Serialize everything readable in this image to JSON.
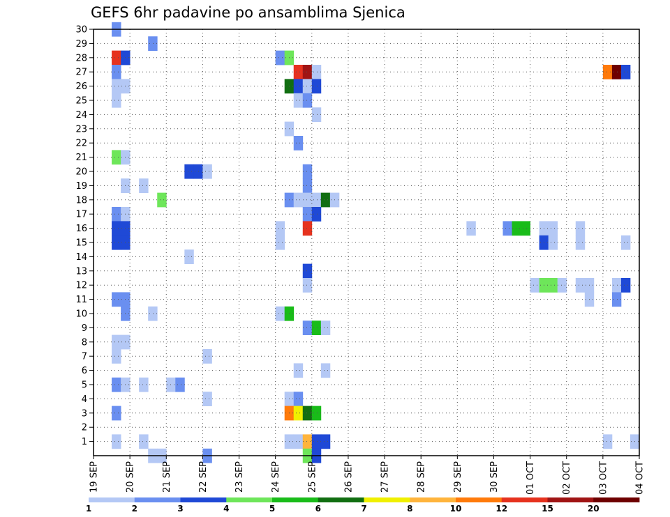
{
  "chart_data": {
    "type": "heatmap",
    "title": "GEFS 6hr padavine po ansamblima Sjenica",
    "xlabel": "",
    "ylabel": "",
    "x_tick_labels": [
      "19 SEP",
      "20 SEP",
      "21 SEP",
      "22 SEP",
      "23 SEP",
      "24 SEP",
      "25 SEP",
      "26 SEP",
      "27 SEP",
      "28 SEP",
      "29 SEP",
      "30 SEP",
      "01 OCT",
      "02 OCT",
      "03 OCT",
      "04 OCT"
    ],
    "x_unit": "6-hour steps from 19 SEP 00Z",
    "xlim": [
      0,
      60
    ],
    "y_tick_labels": [
      "1",
      "2",
      "3",
      "4",
      "5",
      "6",
      "7",
      "8",
      "9",
      "10",
      "11",
      "12",
      "13",
      "14",
      "15",
      "16",
      "17",
      "18",
      "19",
      "20",
      "21",
      "22",
      "23",
      "24",
      "25",
      "26",
      "27",
      "28",
      "29",
      "30"
    ],
    "ylim": [
      0,
      30
    ],
    "grid": true,
    "legend": {
      "placement": "bottom",
      "levels": [
        "1",
        "2",
        "3",
        "4",
        "5",
        "6",
        "7",
        "8",
        "10",
        "12",
        "15",
        "20"
      ],
      "colors": [
        "#b4c8f5",
        "#6a8ff0",
        "#1f49d6",
        "#6ee65a",
        "#19bc19",
        "#116e11",
        "#f0f000",
        "#ffb43c",
        "#ff7a0a",
        "#e6321e",
        "#a01414",
        "#6e0000"
      ]
    },
    "cells": [
      [
        2,
        30,
        1
      ],
      [
        6,
        29,
        1
      ],
      [
        2,
        28,
        9
      ],
      [
        3,
        28,
        2
      ],
      [
        20,
        28,
        1
      ],
      [
        21,
        28,
        3
      ],
      [
        2,
        27,
        1
      ],
      [
        22,
        27,
        9
      ],
      [
        23,
        27,
        10
      ],
      [
        24,
        27,
        0
      ],
      [
        56,
        27,
        8
      ],
      [
        57,
        27,
        11
      ],
      [
        58,
        27,
        2
      ],
      [
        2,
        26,
        0
      ],
      [
        3,
        26,
        0
      ],
      [
        21,
        26,
        5
      ],
      [
        22,
        26,
        2
      ],
      [
        23,
        26,
        0
      ],
      [
        24,
        26,
        2
      ],
      [
        2,
        25,
        0
      ],
      [
        22,
        25,
        0
      ],
      [
        23,
        25,
        1
      ],
      [
        24,
        24,
        0
      ],
      [
        21,
        23,
        0
      ],
      [
        22,
        22,
        1
      ],
      [
        2,
        21,
        3
      ],
      [
        3,
        21,
        0
      ],
      [
        10,
        20,
        2
      ],
      [
        11,
        20,
        2
      ],
      [
        12,
        20,
        0
      ],
      [
        23,
        20,
        1
      ],
      [
        3,
        19,
        0
      ],
      [
        5,
        19,
        0
      ],
      [
        23,
        19,
        1
      ],
      [
        7,
        18,
        3
      ],
      [
        21,
        18,
        1
      ],
      [
        22,
        18,
        0
      ],
      [
        23,
        18,
        0
      ],
      [
        24,
        18,
        0
      ],
      [
        25,
        18,
        5
      ],
      [
        26,
        18,
        0
      ],
      [
        2,
        17,
        1
      ],
      [
        3,
        17,
        0
      ],
      [
        23,
        17,
        1
      ],
      [
        24,
        17,
        2
      ],
      [
        2,
        16,
        2
      ],
      [
        3,
        16,
        2
      ],
      [
        20,
        16,
        0
      ],
      [
        23,
        16,
        9
      ],
      [
        41,
        16,
        0
      ],
      [
        45,
        16,
        1
      ],
      [
        46,
        16,
        4
      ],
      [
        47,
        16,
        4
      ],
      [
        49,
        16,
        0
      ],
      [
        50,
        16,
        0
      ],
      [
        53,
        16,
        0
      ],
      [
        2,
        15,
        2
      ],
      [
        3,
        15,
        2
      ],
      [
        20,
        15,
        0
      ],
      [
        49,
        15,
        2
      ],
      [
        50,
        15,
        0
      ],
      [
        53,
        15,
        0
      ],
      [
        58,
        15,
        0
      ],
      [
        10,
        14,
        0
      ],
      [
        23,
        13,
        2
      ],
      [
        23,
        12,
        0
      ],
      [
        48,
        12,
        0
      ],
      [
        49,
        12,
        3
      ],
      [
        50,
        12,
        3
      ],
      [
        51,
        12,
        0
      ],
      [
        53,
        12,
        0
      ],
      [
        54,
        12,
        0
      ],
      [
        57,
        12,
        0
      ],
      [
        58,
        12,
        2
      ],
      [
        2,
        11,
        1
      ],
      [
        3,
        11,
        1
      ],
      [
        54,
        11,
        0
      ],
      [
        57,
        11,
        1
      ],
      [
        3,
        10,
        1
      ],
      [
        6,
        10,
        0
      ],
      [
        20,
        10,
        0
      ],
      [
        21,
        10,
        4
      ],
      [
        23,
        9,
        1
      ],
      [
        24,
        9,
        4
      ],
      [
        25,
        9,
        0
      ],
      [
        2,
        8,
        0
      ],
      [
        3,
        8,
        0
      ],
      [
        2,
        7,
        0
      ],
      [
        12,
        7,
        0
      ],
      [
        22,
        6,
        0
      ],
      [
        25,
        6,
        0
      ],
      [
        2,
        5,
        1
      ],
      [
        3,
        5,
        0
      ],
      [
        5,
        5,
        0
      ],
      [
        8,
        5,
        0
      ],
      [
        9,
        5,
        1
      ],
      [
        12,
        4,
        0
      ],
      [
        21,
        4,
        0
      ],
      [
        22,
        4,
        1
      ],
      [
        2,
        3,
        1
      ],
      [
        21,
        3,
        8
      ],
      [
        22,
        3,
        6
      ],
      [
        23,
        3,
        5
      ],
      [
        24,
        3,
        4
      ],
      [
        2,
        1,
        0
      ],
      [
        5,
        1,
        0
      ],
      [
        21,
        1,
        0
      ],
      [
        22,
        1,
        0
      ],
      [
        23,
        1,
        7
      ],
      [
        24,
        1,
        2
      ],
      [
        25,
        1,
        2
      ],
      [
        56,
        1,
        0
      ],
      [
        59,
        1,
        0
      ],
      [
        6,
        0,
        0
      ],
      [
        7,
        0,
        0
      ],
      [
        12,
        0,
        1
      ],
      [
        23,
        0,
        3
      ],
      [
        24,
        0,
        2
      ]
    ]
  }
}
